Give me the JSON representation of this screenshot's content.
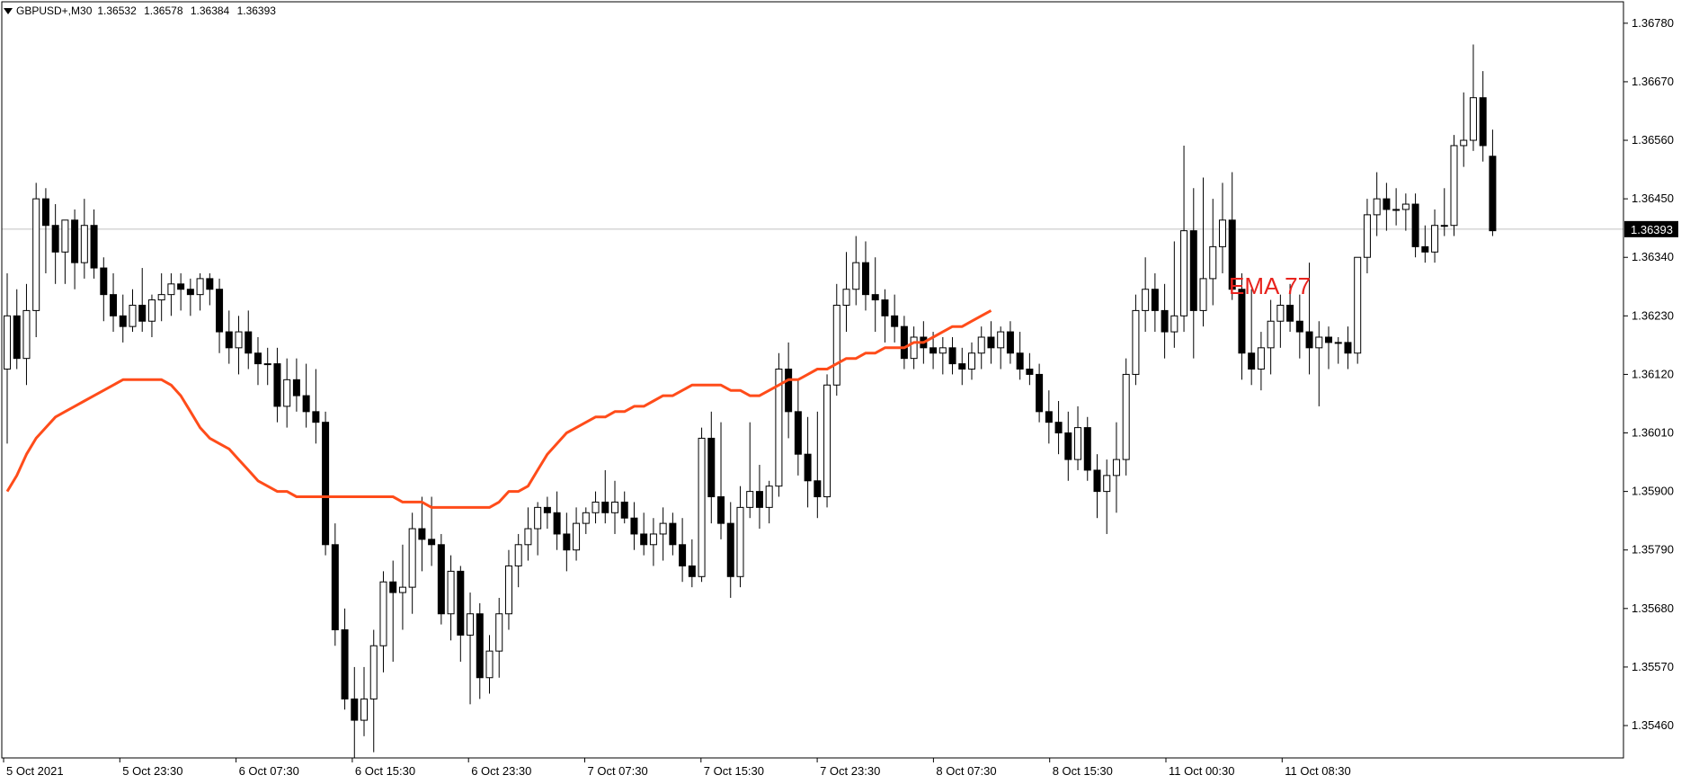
{
  "symbol": "GBPUSD+,M30",
  "ohlc": {
    "open": "1.36532",
    "high": "1.36578",
    "low": "1.36384",
    "close": "1.36393"
  },
  "indicator_label": "EMA 77",
  "colors": {
    "background": "#ffffff",
    "axis": "#000000",
    "candle_bull": "#ffffff",
    "candle_bear": "#000000",
    "ema": "#ff4c1a",
    "ema_label": "#e8231d",
    "price_line": "#c0c0c0",
    "price_box": "#000000"
  },
  "chart_data": {
    "type": "candlestick",
    "timeframe": "M30",
    "ylim": [
      1.3541,
      1.368
    ],
    "y_ticks": [
      "1.36780",
      "1.36670",
      "1.36560",
      "1.36450",
      "1.36340",
      "1.36230",
      "1.36120",
      "1.36010",
      "1.35900",
      "1.35790",
      "1.35680",
      "1.35570",
      "1.35460"
    ],
    "x_ticks": [
      "5 Oct 2021",
      "5 Oct 23:30",
      "6 Oct 07:30",
      "6 Oct 15:30",
      "6 Oct 23:30",
      "7 Oct 07:30",
      "7 Oct 15:30",
      "7 Oct 23:30",
      "8 Oct 07:30",
      "8 Oct 15:30",
      "11 Oct 00:30",
      "11 Oct 08:30"
    ],
    "current_price": "1.36393",
    "series": [
      {
        "name": "EMA 77",
        "type": "line",
        "values": [
          1.359,
          1.3593,
          1.3597,
          1.36,
          1.3602,
          1.3604,
          1.3605,
          1.3606,
          1.3607,
          1.3608,
          1.3609,
          1.361,
          1.3611,
          1.3611,
          1.3611,
          1.3611,
          1.3611,
          1.361,
          1.3608,
          1.3605,
          1.3602,
          1.36,
          1.3599,
          1.3598,
          1.3596,
          1.3594,
          1.3592,
          1.3591,
          1.359,
          1.359,
          1.3589,
          1.3589,
          1.3589,
          1.3589,
          1.3589,
          1.3589,
          1.3589,
          1.3589,
          1.3589,
          1.3589,
          1.3589,
          1.3588,
          1.3588,
          1.3588,
          1.3587,
          1.3587,
          1.3587,
          1.3587,
          1.3587,
          1.3587,
          1.3587,
          1.3588,
          1.359,
          1.359,
          1.3591,
          1.3594,
          1.3597,
          1.3599,
          1.3601,
          1.3602,
          1.3603,
          1.3604,
          1.3604,
          1.3605,
          1.3605,
          1.3606,
          1.3606,
          1.3607,
          1.3608,
          1.3608,
          1.3609,
          1.361,
          1.361,
          1.361,
          1.361,
          1.3609,
          1.3609,
          1.3608,
          1.3608,
          1.3609,
          1.361,
          1.3611,
          1.3611,
          1.3612,
          1.3613,
          1.3613,
          1.3614,
          1.3615,
          1.3615,
          1.3616,
          1.3616,
          1.3617,
          1.3617,
          1.3617,
          1.3618,
          1.3618,
          1.3619,
          1.362,
          1.3621,
          1.3621,
          1.3622,
          1.3623,
          1.3624
        ]
      }
    ],
    "candles": [
      {
        "o": 1.3613,
        "h": 1.3631,
        "l": 1.3599,
        "c": 1.3623
      },
      {
        "o": 1.3623,
        "h": 1.3628,
        "l": 1.3613,
        "c": 1.3615
      },
      {
        "o": 1.3615,
        "h": 1.3629,
        "l": 1.361,
        "c": 1.3624
      },
      {
        "o": 1.3624,
        "h": 1.3648,
        "l": 1.3619,
        "c": 1.3645
      },
      {
        "o": 1.3645,
        "h": 1.3647,
        "l": 1.3631,
        "c": 1.364
      },
      {
        "o": 1.364,
        "h": 1.3644,
        "l": 1.3629,
        "c": 1.3635
      },
      {
        "o": 1.3635,
        "h": 1.3641,
        "l": 1.3629,
        "c": 1.3641
      },
      {
        "o": 1.3641,
        "h": 1.3643,
        "l": 1.3628,
        "c": 1.3633
      },
      {
        "o": 1.3633,
        "h": 1.3645,
        "l": 1.363,
        "c": 1.364
      },
      {
        "o": 1.364,
        "h": 1.3643,
        "l": 1.363,
        "c": 1.3632
      },
      {
        "o": 1.3632,
        "h": 1.3634,
        "l": 1.3622,
        "c": 1.3627
      },
      {
        "o": 1.3627,
        "h": 1.3631,
        "l": 1.362,
        "c": 1.3623
      },
      {
        "o": 1.3623,
        "h": 1.3627,
        "l": 1.3618,
        "c": 1.3621
      },
      {
        "o": 1.3621,
        "h": 1.3628,
        "l": 1.362,
        "c": 1.3625
      },
      {
        "o": 1.3625,
        "h": 1.3632,
        "l": 1.362,
        "c": 1.3622
      },
      {
        "o": 1.3622,
        "h": 1.3627,
        "l": 1.3619,
        "c": 1.3626
      },
      {
        "o": 1.3626,
        "h": 1.3631,
        "l": 1.3622,
        "c": 1.3627
      },
      {
        "o": 1.3627,
        "h": 1.3631,
        "l": 1.3623,
        "c": 1.3629
      },
      {
        "o": 1.3629,
        "h": 1.3631,
        "l": 1.3624,
        "c": 1.3628
      },
      {
        "o": 1.3628,
        "h": 1.363,
        "l": 1.3623,
        "c": 1.3627
      },
      {
        "o": 1.3627,
        "h": 1.3631,
        "l": 1.3624,
        "c": 1.363
      },
      {
        "o": 1.363,
        "h": 1.3631,
        "l": 1.3625,
        "c": 1.3628
      },
      {
        "o": 1.3628,
        "h": 1.363,
        "l": 1.3616,
        "c": 1.362
      },
      {
        "o": 1.362,
        "h": 1.3624,
        "l": 1.3614,
        "c": 1.3617
      },
      {
        "o": 1.3617,
        "h": 1.3623,
        "l": 1.3612,
        "c": 1.362
      },
      {
        "o": 1.362,
        "h": 1.3624,
        "l": 1.3613,
        "c": 1.3616
      },
      {
        "o": 1.3616,
        "h": 1.3619,
        "l": 1.361,
        "c": 1.3614
      },
      {
        "o": 1.3614,
        "h": 1.3617,
        "l": 1.361,
        "c": 1.3614
      },
      {
        "o": 1.3614,
        "h": 1.3617,
        "l": 1.3603,
        "c": 1.3606
      },
      {
        "o": 1.3606,
        "h": 1.3615,
        "l": 1.3602,
        "c": 1.3611
      },
      {
        "o": 1.3611,
        "h": 1.3615,
        "l": 1.3605,
        "c": 1.3608
      },
      {
        "o": 1.3608,
        "h": 1.3614,
        "l": 1.3602,
        "c": 1.3605
      },
      {
        "o": 1.3605,
        "h": 1.3613,
        "l": 1.3599,
        "c": 1.3603
      },
      {
        "o": 1.3603,
        "h": 1.3605,
        "l": 1.3578,
        "c": 1.358
      },
      {
        "o": 1.358,
        "h": 1.3584,
        "l": 1.3561,
        "c": 1.3564
      },
      {
        "o": 1.3564,
        "h": 1.3568,
        "l": 1.3549,
        "c": 1.3551
      },
      {
        "o": 1.3551,
        "h": 1.3557,
        "l": 1.354,
        "c": 1.3547
      },
      {
        "o": 1.3547,
        "h": 1.3557,
        "l": 1.3544,
        "c": 1.3551
      },
      {
        "o": 1.3551,
        "h": 1.3564,
        "l": 1.3541,
        "c": 1.3561
      },
      {
        "o": 1.3561,
        "h": 1.3575,
        "l": 1.3556,
        "c": 1.3573
      },
      {
        "o": 1.3573,
        "h": 1.3577,
        "l": 1.3558,
        "c": 1.3571
      },
      {
        "o": 1.3571,
        "h": 1.358,
        "l": 1.3564,
        "c": 1.3572
      },
      {
        "o": 1.3572,
        "h": 1.3586,
        "l": 1.3567,
        "c": 1.3583
      },
      {
        "o": 1.3583,
        "h": 1.3589,
        "l": 1.3575,
        "c": 1.3581
      },
      {
        "o": 1.3581,
        "h": 1.3589,
        "l": 1.3576,
        "c": 1.358
      },
      {
        "o": 1.358,
        "h": 1.3582,
        "l": 1.3565,
        "c": 1.3567
      },
      {
        "o": 1.3567,
        "h": 1.3578,
        "l": 1.3562,
        "c": 1.3575
      },
      {
        "o": 1.3575,
        "h": 1.3576,
        "l": 1.3558,
        "c": 1.3563
      },
      {
        "o": 1.3563,
        "h": 1.3571,
        "l": 1.355,
        "c": 1.3567
      },
      {
        "o": 1.3567,
        "h": 1.3569,
        "l": 1.3551,
        "c": 1.3555
      },
      {
        "o": 1.3555,
        "h": 1.3563,
        "l": 1.3552,
        "c": 1.356
      },
      {
        "o": 1.356,
        "h": 1.357,
        "l": 1.3555,
        "c": 1.3567
      },
      {
        "o": 1.3567,
        "h": 1.3579,
        "l": 1.3564,
        "c": 1.3576
      },
      {
        "o": 1.3576,
        "h": 1.3582,
        "l": 1.3572,
        "c": 1.358
      },
      {
        "o": 1.358,
        "h": 1.3587,
        "l": 1.3577,
        "c": 1.3583
      },
      {
        "o": 1.3583,
        "h": 1.3588,
        "l": 1.3578,
        "c": 1.3587
      },
      {
        "o": 1.3587,
        "h": 1.3589,
        "l": 1.3583,
        "c": 1.3586
      },
      {
        "o": 1.3586,
        "h": 1.359,
        "l": 1.3579,
        "c": 1.3582
      },
      {
        "o": 1.3582,
        "h": 1.3586,
        "l": 1.3575,
        "c": 1.3579
      },
      {
        "o": 1.3579,
        "h": 1.3587,
        "l": 1.3577,
        "c": 1.3584
      },
      {
        "o": 1.3584,
        "h": 1.3587,
        "l": 1.3582,
        "c": 1.3586
      },
      {
        "o": 1.3586,
        "h": 1.359,
        "l": 1.3584,
        "c": 1.3588
      },
      {
        "o": 1.3588,
        "h": 1.3594,
        "l": 1.3584,
        "c": 1.3586
      },
      {
        "o": 1.3586,
        "h": 1.3592,
        "l": 1.3582,
        "c": 1.3588
      },
      {
        "o": 1.3588,
        "h": 1.359,
        "l": 1.3584,
        "c": 1.3585
      },
      {
        "o": 1.3585,
        "h": 1.3588,
        "l": 1.3579,
        "c": 1.3582
      },
      {
        "o": 1.3582,
        "h": 1.3586,
        "l": 1.3578,
        "c": 1.358
      },
      {
        "o": 1.358,
        "h": 1.3585,
        "l": 1.3576,
        "c": 1.3582
      },
      {
        "o": 1.3582,
        "h": 1.3587,
        "l": 1.3577,
        "c": 1.3584
      },
      {
        "o": 1.3584,
        "h": 1.3586,
        "l": 1.3578,
        "c": 1.358
      },
      {
        "o": 1.358,
        "h": 1.3585,
        "l": 1.3573,
        "c": 1.3576
      },
      {
        "o": 1.3576,
        "h": 1.3581,
        "l": 1.3572,
        "c": 1.3574
      },
      {
        "o": 1.3574,
        "h": 1.3602,
        "l": 1.3573,
        "c": 1.36
      },
      {
        "o": 1.36,
        "h": 1.3605,
        "l": 1.3584,
        "c": 1.3589
      },
      {
        "o": 1.3589,
        "h": 1.3603,
        "l": 1.3581,
        "c": 1.3584
      },
      {
        "o": 1.3584,
        "h": 1.3588,
        "l": 1.357,
        "c": 1.3574
      },
      {
        "o": 1.3574,
        "h": 1.3591,
        "l": 1.3572,
        "c": 1.3587
      },
      {
        "o": 1.3587,
        "h": 1.3603,
        "l": 1.3585,
        "c": 1.359
      },
      {
        "o": 1.359,
        "h": 1.3595,
        "l": 1.3583,
        "c": 1.3587
      },
      {
        "o": 1.3587,
        "h": 1.3592,
        "l": 1.3584,
        "c": 1.3591
      },
      {
        "o": 1.3591,
        "h": 1.3616,
        "l": 1.3589,
        "c": 1.3613
      },
      {
        "o": 1.3613,
        "h": 1.3618,
        "l": 1.36,
        "c": 1.3605
      },
      {
        "o": 1.3605,
        "h": 1.3611,
        "l": 1.3593,
        "c": 1.3597
      },
      {
        "o": 1.3597,
        "h": 1.3604,
        "l": 1.3587,
        "c": 1.3592
      },
      {
        "o": 1.3592,
        "h": 1.3605,
        "l": 1.3585,
        "c": 1.3589
      },
      {
        "o": 1.3589,
        "h": 1.3612,
        "l": 1.3587,
        "c": 1.361
      },
      {
        "o": 1.361,
        "h": 1.3629,
        "l": 1.3608,
        "c": 1.3625
      },
      {
        "o": 1.3625,
        "h": 1.3635,
        "l": 1.362,
        "c": 1.3628
      },
      {
        "o": 1.3628,
        "h": 1.3638,
        "l": 1.3625,
        "c": 1.3633
      },
      {
        "o": 1.3633,
        "h": 1.3637,
        "l": 1.3624,
        "c": 1.3627
      },
      {
        "o": 1.3627,
        "h": 1.3634,
        "l": 1.362,
        "c": 1.3626
      },
      {
        "o": 1.3626,
        "h": 1.3628,
        "l": 1.3618,
        "c": 1.3623
      },
      {
        "o": 1.3623,
        "h": 1.3627,
        "l": 1.3618,
        "c": 1.3621
      },
      {
        "o": 1.3621,
        "h": 1.3623,
        "l": 1.3613,
        "c": 1.3615
      },
      {
        "o": 1.3615,
        "h": 1.3621,
        "l": 1.3613,
        "c": 1.3619
      },
      {
        "o": 1.3619,
        "h": 1.3622,
        "l": 1.3614,
        "c": 1.3617
      },
      {
        "o": 1.3617,
        "h": 1.362,
        "l": 1.3613,
        "c": 1.3616
      },
      {
        "o": 1.3616,
        "h": 1.3619,
        "l": 1.3612,
        "c": 1.3617
      },
      {
        "o": 1.3617,
        "h": 1.3619,
        "l": 1.3612,
        "c": 1.3614
      },
      {
        "o": 1.3614,
        "h": 1.3617,
        "l": 1.361,
        "c": 1.3613
      },
      {
        "o": 1.3613,
        "h": 1.3618,
        "l": 1.3611,
        "c": 1.3616
      },
      {
        "o": 1.3616,
        "h": 1.3621,
        "l": 1.3613,
        "c": 1.3619
      },
      {
        "o": 1.3619,
        "h": 1.3622,
        "l": 1.3614,
        "c": 1.3617
      },
      {
        "o": 1.3617,
        "h": 1.3621,
        "l": 1.3613,
        "c": 1.362
      },
      {
        "o": 1.362,
        "h": 1.3622,
        "l": 1.3614,
        "c": 1.3616
      },
      {
        "o": 1.3616,
        "h": 1.362,
        "l": 1.3611,
        "c": 1.3613
      },
      {
        "o": 1.3613,
        "h": 1.3616,
        "l": 1.361,
        "c": 1.3612
      },
      {
        "o": 1.3612,
        "h": 1.3614,
        "l": 1.3603,
        "c": 1.3605
      },
      {
        "o": 1.3605,
        "h": 1.3609,
        "l": 1.3599,
        "c": 1.3603
      },
      {
        "o": 1.3603,
        "h": 1.3607,
        "l": 1.3597,
        "c": 1.3601
      },
      {
        "o": 1.3601,
        "h": 1.3605,
        "l": 1.3592,
        "c": 1.3596
      },
      {
        "o": 1.3596,
        "h": 1.3606,
        "l": 1.3594,
        "c": 1.3602
      },
      {
        "o": 1.3602,
        "h": 1.3604,
        "l": 1.3592,
        "c": 1.3594
      },
      {
        "o": 1.3594,
        "h": 1.3597,
        "l": 1.3585,
        "c": 1.359
      },
      {
        "o": 1.359,
        "h": 1.3596,
        "l": 1.3582,
        "c": 1.3593
      },
      {
        "o": 1.3593,
        "h": 1.3603,
        "l": 1.3586,
        "c": 1.3596
      },
      {
        "o": 1.3596,
        "h": 1.3615,
        "l": 1.3593,
        "c": 1.3612
      },
      {
        "o": 1.3612,
        "h": 1.3627,
        "l": 1.361,
        "c": 1.3624
      },
      {
        "o": 1.3624,
        "h": 1.3634,
        "l": 1.362,
        "c": 1.3628
      },
      {
        "o": 1.3628,
        "h": 1.3631,
        "l": 1.362,
        "c": 1.3624
      },
      {
        "o": 1.3624,
        "h": 1.3629,
        "l": 1.3615,
        "c": 1.362
      },
      {
        "o": 1.362,
        "h": 1.3637,
        "l": 1.3617,
        "c": 1.3623
      },
      {
        "o": 1.3623,
        "h": 1.3655,
        "l": 1.362,
        "c": 1.3639
      },
      {
        "o": 1.3639,
        "h": 1.3647,
        "l": 1.3615,
        "c": 1.3624
      },
      {
        "o": 1.3624,
        "h": 1.3649,
        "l": 1.3621,
        "c": 1.363
      },
      {
        "o": 1.363,
        "h": 1.3645,
        "l": 1.3625,
        "c": 1.3636
      },
      {
        "o": 1.3636,
        "h": 1.3648,
        "l": 1.3631,
        "c": 1.3641
      },
      {
        "o": 1.3641,
        "h": 1.365,
        "l": 1.3626,
        "c": 1.3628
      },
      {
        "o": 1.3628,
        "h": 1.3631,
        "l": 1.3611,
        "c": 1.3616
      },
      {
        "o": 1.3616,
        "h": 1.3628,
        "l": 1.361,
        "c": 1.3613
      },
      {
        "o": 1.3613,
        "h": 1.362,
        "l": 1.3609,
        "c": 1.3617
      },
      {
        "o": 1.3617,
        "h": 1.3626,
        "l": 1.3612,
        "c": 1.3622
      },
      {
        "o": 1.3622,
        "h": 1.3627,
        "l": 1.3617,
        "c": 1.3625
      },
      {
        "o": 1.3625,
        "h": 1.3629,
        "l": 1.362,
        "c": 1.3622
      },
      {
        "o": 1.3622,
        "h": 1.3627,
        "l": 1.3615,
        "c": 1.362
      },
      {
        "o": 1.362,
        "h": 1.3633,
        "l": 1.3612,
        "c": 1.3617
      },
      {
        "o": 1.3617,
        "h": 1.3622,
        "l": 1.3606,
        "c": 1.3619
      },
      {
        "o": 1.3619,
        "h": 1.3621,
        "l": 1.3613,
        "c": 1.3618
      },
      {
        "o": 1.3618,
        "h": 1.3619,
        "l": 1.3614,
        "c": 1.3618
      },
      {
        "o": 1.3618,
        "h": 1.3621,
        "l": 1.3613,
        "c": 1.3616
      },
      {
        "o": 1.3616,
        "h": 1.3634,
        "l": 1.3614,
        "c": 1.3634
      },
      {
        "o": 1.3634,
        "h": 1.3645,
        "l": 1.3631,
        "c": 1.3642
      },
      {
        "o": 1.3642,
        "h": 1.365,
        "l": 1.3638,
        "c": 1.3645
      },
      {
        "o": 1.3645,
        "h": 1.3648,
        "l": 1.3639,
        "c": 1.3643
      },
      {
        "o": 1.3643,
        "h": 1.3647,
        "l": 1.364,
        "c": 1.3643
      },
      {
        "o": 1.3643,
        "h": 1.3646,
        "l": 1.3639,
        "c": 1.3644
      },
      {
        "o": 1.3644,
        "h": 1.3646,
        "l": 1.3634,
        "c": 1.3636
      },
      {
        "o": 1.3636,
        "h": 1.364,
        "l": 1.3633,
        "c": 1.3635
      },
      {
        "o": 1.3635,
        "h": 1.3643,
        "l": 1.3633,
        "c": 1.364
      },
      {
        "o": 1.364,
        "h": 1.3647,
        "l": 1.3638,
        "c": 1.364
      },
      {
        "o": 1.364,
        "h": 1.3657,
        "l": 1.3638,
        "c": 1.3655
      },
      {
        "o": 1.3655,
        "h": 1.3665,
        "l": 1.3651,
        "c": 1.3656
      },
      {
        "o": 1.3656,
        "h": 1.3674,
        "l": 1.3654,
        "c": 1.3664
      },
      {
        "o": 1.3664,
        "h": 1.3669,
        "l": 1.3652,
        "c": 1.3655
      },
      {
        "o": 1.3653,
        "h": 1.3658,
        "l": 1.3638,
        "c": 1.3639
      }
    ]
  }
}
